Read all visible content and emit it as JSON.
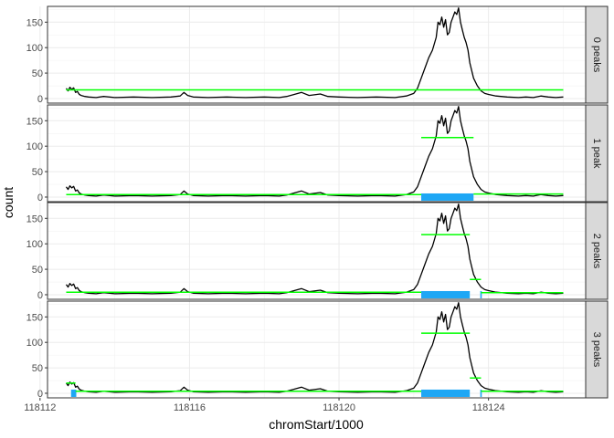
{
  "chart_data": {
    "type": "line",
    "xlabel": "chromStart/1000",
    "ylabel": "count",
    "xlim": [
      118112.2,
      118126.6
    ],
    "ylim": [
      -9,
      181
    ],
    "x_ticks": [
      118112,
      118116,
      118120,
      118124
    ],
    "y_ticks": [
      0,
      50,
      100,
      150
    ],
    "grid": true,
    "line_color": "#000000",
    "segment_color": "#00ff00",
    "peak_color": "#1ea7f5",
    "coverage": {
      "x": [
        118112.7,
        118112.75,
        118112.8,
        118112.85,
        118112.9,
        118112.95,
        118113.0,
        118113.05,
        118113.1,
        118113.2,
        118113.3,
        118113.5,
        118113.7,
        118114.0,
        118114.5,
        118115.0,
        118115.5,
        118115.75,
        118115.85,
        118115.95,
        118116.1,
        118116.5,
        118117.0,
        118117.5,
        118118.0,
        118118.4,
        118118.6,
        118118.8,
        118118.9,
        118119.0,
        118119.2,
        118119.5,
        118119.7,
        118120.0,
        118120.5,
        118121.0,
        118121.5,
        118121.8,
        118122.0,
        118122.1,
        118122.2,
        118122.3,
        118122.4,
        118122.5,
        118122.6,
        118122.65,
        118122.7,
        118122.75,
        118122.8,
        118122.85,
        118122.9,
        118122.95,
        118123.0,
        118123.05,
        118123.1,
        118123.15,
        118123.2,
        118123.25,
        118123.3,
        118123.35,
        118123.4,
        118123.45,
        118123.5,
        118123.6,
        118123.7,
        118123.8,
        118123.9,
        118124.0,
        118124.2,
        118124.5,
        118124.8,
        118125.0,
        118125.2,
        118125.4,
        118125.6,
        118125.8,
        118126.0
      ],
      "y": [
        20,
        15,
        22,
        18,
        21,
        12,
        14,
        8,
        6,
        4,
        3,
        2,
        4,
        2,
        3,
        2,
        3,
        5,
        12,
        6,
        3,
        2,
        3,
        2,
        3,
        2,
        4,
        8,
        10,
        12,
        6,
        9,
        4,
        3,
        2,
        3,
        2,
        5,
        10,
        20,
        40,
        60,
        80,
        95,
        120,
        150,
        145,
        160,
        140,
        155,
        125,
        130,
        150,
        160,
        170,
        165,
        178,
        150,
        135,
        120,
        110,
        95,
        70,
        40,
        25,
        15,
        10,
        8,
        5,
        3,
        2,
        3,
        2,
        5,
        3,
        2,
        3
      ]
    },
    "panels": [
      {
        "strip": "0 peaks",
        "segments": [
          {
            "x0": 118112.7,
            "x1": 118126.0,
            "y": 17
          }
        ],
        "peaks": []
      },
      {
        "strip": "1 peak",
        "segments": [
          {
            "x0": 118112.7,
            "x1": 118122.2,
            "y": 5
          },
          {
            "x0": 118122.2,
            "x1": 118123.6,
            "y": 117
          },
          {
            "x0": 118123.6,
            "x1": 118126.0,
            "y": 6
          }
        ],
        "peaks": [
          {
            "x0": 118122.2,
            "x1": 118123.6
          }
        ]
      },
      {
        "strip": "2 peaks",
        "segments": [
          {
            "x0": 118112.7,
            "x1": 118122.2,
            "y": 5
          },
          {
            "x0": 118122.2,
            "x1": 118123.5,
            "y": 118
          },
          {
            "x0": 118123.5,
            "x1": 118123.8,
            "y": 30
          },
          {
            "x0": 118123.8,
            "x1": 118126.0,
            "y": 4
          }
        ],
        "peaks": [
          {
            "x0": 118122.2,
            "x1": 118123.5
          },
          {
            "x0": 118123.78,
            "x1": 118123.82
          }
        ]
      },
      {
        "strip": "3 peaks",
        "segments": [
          {
            "x0": 118112.7,
            "x1": 118112.95,
            "y": 20
          },
          {
            "x0": 118112.95,
            "x1": 118122.2,
            "y": 4
          },
          {
            "x0": 118122.2,
            "x1": 118123.5,
            "y": 118
          },
          {
            "x0": 118123.5,
            "x1": 118123.8,
            "y": 30
          },
          {
            "x0": 118123.8,
            "x1": 118126.0,
            "y": 4
          }
        ],
        "peaks": [
          {
            "x0": 118112.83,
            "x1": 118112.97
          },
          {
            "x0": 118122.2,
            "x1": 118123.5
          },
          {
            "x0": 118123.78,
            "x1": 118123.82
          }
        ]
      }
    ]
  }
}
